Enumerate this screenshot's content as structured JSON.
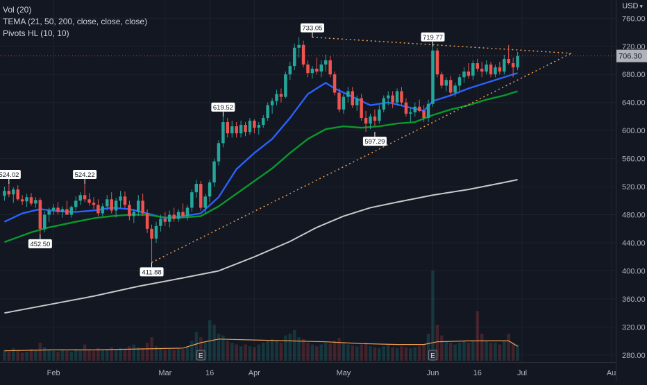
{
  "legend": {
    "vol": "Vol (20)",
    "tema": "TEMA (21, 50, 200, close, close, close)",
    "pivots": "Pivots HL (10, 10)"
  },
  "currency": {
    "label": "USD",
    "icon": "chevron-down-icon"
  },
  "colors": {
    "background": "#131722",
    "grid": "#1e222d",
    "up": "#26a69a",
    "down": "#ef5350",
    "tema_fast": "#2962ff",
    "tema_mid": "#089a2d",
    "tema_slow": "#c9c9c9",
    "vol_ma": "#f0a050",
    "trendline": "#f0a050",
    "price_line": "#ff5252"
  },
  "chart_data": {
    "type": "candlestick",
    "y_axis": {
      "ticks": [
        "280.00",
        "320.00",
        "360.00",
        "400.00",
        "440.00",
        "480.00",
        "520.00",
        "560.00",
        "600.00",
        "640.00",
        "680.00",
        "720.00",
        "760.00"
      ],
      "range": [
        270,
        786
      ]
    },
    "x_axis": {
      "tick_labels": [
        "Feb",
        "Mar",
        "16",
        "Apr",
        "May",
        "Jun",
        "16",
        "Jul",
        "Au"
      ],
      "tick_positions": [
        11,
        36,
        46,
        56,
        76,
        96,
        106,
        116,
        136
      ],
      "range": [
        -1,
        137
      ]
    },
    "last_price": {
      "value": 706.3,
      "label": "706.30"
    },
    "candles": [
      [
        0,
        507,
        520,
        500,
        514
      ],
      [
        1,
        514,
        524,
        505,
        509
      ],
      [
        2,
        509,
        519,
        497,
        516
      ],
      [
        3,
        516,
        522,
        500,
        502
      ],
      [
        4,
        502,
        508,
        494,
        499
      ],
      [
        5,
        499,
        510,
        491,
        505
      ],
      [
        6,
        505,
        511,
        493,
        496
      ],
      [
        7,
        496,
        505,
        490,
        501
      ],
      [
        8,
        501,
        504,
        452,
        460
      ],
      [
        9,
        460,
        485,
        455,
        480
      ],
      [
        10,
        480,
        490,
        470,
        486
      ],
      [
        11,
        486,
        495,
        480,
        490
      ],
      [
        12,
        490,
        498,
        480,
        484
      ],
      [
        13,
        484,
        492,
        476,
        488
      ],
      [
        14,
        488,
        500,
        482,
        480
      ],
      [
        15,
        480,
        493,
        476,
        491
      ],
      [
        16,
        491,
        506,
        486,
        500
      ],
      [
        17,
        500,
        512,
        494,
        508
      ],
      [
        18,
        508,
        524,
        498,
        502
      ],
      [
        19,
        502,
        511,
        493,
        497
      ],
      [
        20,
        497,
        505,
        488,
        494
      ],
      [
        21,
        494,
        502,
        478,
        482
      ],
      [
        22,
        482,
        496,
        478,
        492
      ],
      [
        23,
        492,
        508,
        486,
        502
      ],
      [
        24,
        502,
        512,
        482,
        486
      ],
      [
        25,
        486,
        504,
        476,
        500
      ],
      [
        26,
        500,
        514,
        490,
        506
      ],
      [
        27,
        506,
        513,
        490,
        494
      ],
      [
        28,
        494,
        500,
        472,
        478
      ],
      [
        29,
        478,
        488,
        468,
        484
      ],
      [
        30,
        484,
        508,
        478,
        500
      ],
      [
        31,
        500,
        510,
        478,
        482
      ],
      [
        32,
        482,
        488,
        454,
        460
      ],
      [
        33,
        460,
        466,
        412,
        446
      ],
      [
        34,
        446,
        470,
        440,
        464
      ],
      [
        35,
        464,
        480,
        456,
        474
      ],
      [
        36,
        474,
        484,
        464,
        470
      ],
      [
        37,
        470,
        486,
        462,
        480
      ],
      [
        38,
        480,
        490,
        470,
        474
      ],
      [
        39,
        474,
        488,
        470,
        484
      ],
      [
        40,
        484,
        496,
        476,
        478
      ],
      [
        41,
        478,
        494,
        472,
        490
      ],
      [
        42,
        490,
        516,
        484,
        512
      ],
      [
        43,
        512,
        530,
        504,
        524
      ],
      [
        44,
        524,
        528,
        486,
        490
      ],
      [
        45,
        490,
        510,
        482,
        506
      ],
      [
        46,
        506,
        530,
        498,
        526
      ],
      [
        47,
        526,
        560,
        520,
        556
      ],
      [
        48,
        556,
        586,
        550,
        582
      ],
      [
        49,
        582,
        620,
        576,
        612
      ],
      [
        50,
        612,
        618,
        590,
        596
      ],
      [
        51,
        596,
        614,
        590,
        606
      ],
      [
        52,
        606,
        612,
        590,
        596
      ],
      [
        53,
        596,
        614,
        590,
        608
      ],
      [
        54,
        608,
        612,
        592,
        598
      ],
      [
        55,
        598,
        618,
        594,
        614
      ],
      [
        56,
        614,
        616,
        596,
        604
      ],
      [
        57,
        604,
        612,
        594,
        608
      ],
      [
        58,
        608,
        622,
        604,
        618
      ],
      [
        59,
        618,
        640,
        614,
        636
      ],
      [
        60,
        636,
        646,
        624,
        642
      ],
      [
        61,
        642,
        658,
        636,
        652
      ],
      [
        62,
        652,
        660,
        640,
        648
      ],
      [
        63,
        648,
        684,
        646,
        680
      ],
      [
        64,
        680,
        698,
        672,
        692
      ],
      [
        65,
        692,
        724,
        686,
        718
      ],
      [
        66,
        718,
        733,
        704,
        722
      ],
      [
        67,
        722,
        728,
        690,
        694
      ],
      [
        68,
        694,
        700,
        676,
        682
      ],
      [
        69,
        682,
        692,
        674,
        688
      ],
      [
        70,
        688,
        704,
        680,
        684
      ],
      [
        71,
        684,
        700,
        676,
        694
      ],
      [
        72,
        694,
        708,
        684,
        700
      ],
      [
        73,
        700,
        706,
        676,
        680
      ],
      [
        74,
        680,
        684,
        650,
        654
      ],
      [
        75,
        654,
        660,
        626,
        630
      ],
      [
        76,
        630,
        652,
        624,
        648
      ],
      [
        77,
        648,
        662,
        640,
        656
      ],
      [
        78,
        656,
        662,
        632,
        636
      ],
      [
        79,
        636,
        650,
        628,
        646
      ],
      [
        80,
        646,
        652,
        614,
        618
      ],
      [
        81,
        618,
        628,
        598,
        610
      ],
      [
        82,
        610,
        624,
        602,
        620
      ],
      [
        83,
        620,
        630,
        606,
        614
      ],
      [
        84,
        614,
        636,
        610,
        630
      ],
      [
        85,
        630,
        650,
        626,
        646
      ],
      [
        86,
        646,
        656,
        636,
        650
      ],
      [
        87,
        650,
        656,
        632,
        640
      ],
      [
        88,
        640,
        660,
        636,
        656
      ],
      [
        89,
        656,
        662,
        636,
        640
      ],
      [
        90,
        640,
        646,
        620,
        624
      ],
      [
        91,
        624,
        632,
        612,
        626
      ],
      [
        92,
        626,
        640,
        620,
        634
      ],
      [
        93,
        634,
        644,
        626,
        628
      ],
      [
        94,
        628,
        636,
        612,
        618
      ],
      [
        95,
        618,
        644,
        612,
        638
      ],
      [
        96,
        638,
        720,
        634,
        714
      ],
      [
        97,
        714,
        718,
        676,
        680
      ],
      [
        98,
        680,
        684,
        660,
        664
      ],
      [
        99,
        664,
        676,
        656,
        672
      ],
      [
        100,
        672,
        678,
        650,
        654
      ],
      [
        101,
        654,
        668,
        648,
        664
      ],
      [
        102,
        664,
        680,
        656,
        676
      ],
      [
        103,
        676,
        690,
        668,
        684
      ],
      [
        104,
        684,
        696,
        674,
        678
      ],
      [
        105,
        678,
        700,
        672,
        696
      ],
      [
        106,
        696,
        702,
        684,
        688
      ],
      [
        107,
        688,
        698,
        676,
        684
      ],
      [
        108,
        684,
        700,
        680,
        694
      ],
      [
        109,
        694,
        698,
        676,
        680
      ],
      [
        110,
        680,
        694,
        676,
        690
      ],
      [
        111,
        690,
        698,
        680,
        684
      ],
      [
        112,
        684,
        708,
        680,
        702
      ],
      [
        113,
        702,
        722,
        694,
        696
      ],
      [
        114,
        696,
        704,
        676,
        690
      ],
      [
        115,
        690,
        712,
        686,
        706
      ]
    ],
    "series": [
      {
        "name": "TEMA 21",
        "color": "#2962ff",
        "points": [
          [
            0,
            470
          ],
          [
            4,
            482
          ],
          [
            8,
            488
          ],
          [
            12,
            485
          ],
          [
            16,
            484
          ],
          [
            20,
            486
          ],
          [
            24,
            490
          ],
          [
            28,
            488
          ],
          [
            32,
            482
          ],
          [
            36,
            475
          ],
          [
            40,
            478
          ],
          [
            44,
            482
          ],
          [
            48,
            505
          ],
          [
            52,
            545
          ],
          [
            56,
            568
          ],
          [
            60,
            588
          ],
          [
            64,
            618
          ],
          [
            68,
            652
          ],
          [
            72,
            668
          ],
          [
            74,
            660
          ],
          [
            78,
            648
          ],
          [
            82,
            636
          ],
          [
            86,
            640
          ],
          [
            90,
            634
          ],
          [
            94,
            628
          ],
          [
            96,
            642
          ],
          [
            100,
            650
          ],
          [
            104,
            660
          ],
          [
            108,
            668
          ],
          [
            112,
            676
          ],
          [
            115,
            682
          ]
        ]
      },
      {
        "name": "TEMA 50",
        "color": "#089a2d",
        "points": [
          [
            0,
            441
          ],
          [
            6,
            455
          ],
          [
            10,
            462
          ],
          [
            16,
            470
          ],
          [
            20,
            475
          ],
          [
            24,
            478
          ],
          [
            28,
            480
          ],
          [
            32,
            480
          ],
          [
            36,
            476
          ],
          [
            40,
            476
          ],
          [
            44,
            478
          ],
          [
            48,
            492
          ],
          [
            52,
            510
          ],
          [
            56,
            528
          ],
          [
            60,
            546
          ],
          [
            64,
            568
          ],
          [
            68,
            588
          ],
          [
            72,
            602
          ],
          [
            76,
            606
          ],
          [
            80,
            604
          ],
          [
            84,
            606
          ],
          [
            88,
            610
          ],
          [
            92,
            612
          ],
          [
            96,
            622
          ],
          [
            100,
            630
          ],
          [
            104,
            636
          ],
          [
            108,
            644
          ],
          [
            112,
            650
          ],
          [
            115,
            656
          ]
        ]
      },
      {
        "name": "TEMA 200",
        "color": "#c9c9c9",
        "points": [
          [
            0,
            340
          ],
          [
            10,
            352
          ],
          [
            20,
            364
          ],
          [
            30,
            378
          ],
          [
            40,
            390
          ],
          [
            48,
            400
          ],
          [
            56,
            420
          ],
          [
            64,
            442
          ],
          [
            70,
            462
          ],
          [
            76,
            478
          ],
          [
            82,
            490
          ],
          [
            88,
            498
          ],
          [
            96,
            508
          ],
          [
            104,
            516
          ],
          [
            112,
            526
          ],
          [
            115,
            530
          ]
        ]
      }
    ],
    "trendlines": [
      {
        "name": "upper",
        "from": [
          69,
          733
        ],
        "to": [
          127,
          710
        ]
      },
      {
        "name": "lower",
        "from": [
          33,
          412
        ],
        "to": [
          127,
          710
        ]
      }
    ],
    "pivot_labels": [
      {
        "label": "524.02",
        "x": 1,
        "y": 524,
        "position": "above"
      },
      {
        "label": "524.22",
        "x": 18,
        "y": 524,
        "position": "above"
      },
      {
        "label": "452.50",
        "x": 8,
        "y": 452,
        "position": "below"
      },
      {
        "label": "411.88",
        "x": 33,
        "y": 412,
        "position": "below"
      },
      {
        "label": "619.52",
        "x": 49,
        "y": 620,
        "position": "above"
      },
      {
        "label": "733.05",
        "x": 69,
        "y": 733,
        "position": "above"
      },
      {
        "label": "597.29",
        "x": 83,
        "y": 598,
        "position": "below"
      },
      {
        "label": "719.77",
        "x": 96,
        "y": 720,
        "position": "above"
      }
    ],
    "volume": [
      0.12,
      0.1,
      0.14,
      0.11,
      0.09,
      0.1,
      0.13,
      0.12,
      0.2,
      0.15,
      0.12,
      0.11,
      0.1,
      0.12,
      0.11,
      0.1,
      0.13,
      0.12,
      0.18,
      0.12,
      0.11,
      0.14,
      0.12,
      0.13,
      0.15,
      0.12,
      0.14,
      0.13,
      0.16,
      0.18,
      0.15,
      0.14,
      0.2,
      0.26,
      0.16,
      0.14,
      0.12,
      0.13,
      0.12,
      0.14,
      0.13,
      0.15,
      0.22,
      0.32,
      0.26,
      0.2,
      0.45,
      0.4,
      0.3,
      0.28,
      0.22,
      0.2,
      0.18,
      0.16,
      0.18,
      0.16,
      0.15,
      0.18,
      0.2,
      0.22,
      0.24,
      0.22,
      0.2,
      0.28,
      0.3,
      0.34,
      0.26,
      0.24,
      0.2,
      0.18,
      0.16,
      0.18,
      0.2,
      0.19,
      0.22,
      0.25,
      0.2,
      0.18,
      0.17,
      0.16,
      0.18,
      0.2,
      0.16,
      0.15,
      0.14,
      0.16,
      0.18,
      0.15,
      0.14,
      0.16,
      0.15,
      0.14,
      0.15,
      0.16,
      0.18,
      0.3,
      1.0,
      0.4,
      0.28,
      0.22,
      0.2,
      0.18,
      0.2,
      0.22,
      0.2,
      0.22,
      0.55,
      0.3,
      0.22,
      0.2,
      0.2,
      0.18,
      0.22,
      0.3,
      0.2,
      0.18
    ],
    "volume_ma": [
      [
        0,
        0.11
      ],
      [
        10,
        0.12
      ],
      [
        20,
        0.12
      ],
      [
        30,
        0.13
      ],
      [
        40,
        0.14
      ],
      [
        44,
        0.2
      ],
      [
        48,
        0.24
      ],
      [
        56,
        0.23
      ],
      [
        64,
        0.22
      ],
      [
        72,
        0.21
      ],
      [
        80,
        0.19
      ],
      [
        88,
        0.18
      ],
      [
        94,
        0.18
      ],
      [
        97,
        0.21
      ],
      [
        104,
        0.22
      ],
      [
        110,
        0.22
      ],
      [
        113,
        0.22
      ],
      [
        115,
        0.16
      ]
    ],
    "earnings_markers": [
      {
        "x": 44,
        "label": "E"
      },
      {
        "x": 96,
        "label": "E"
      }
    ]
  }
}
